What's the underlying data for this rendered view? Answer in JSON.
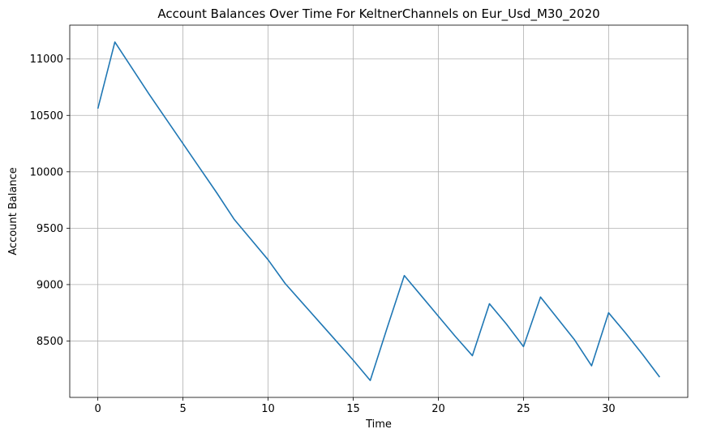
{
  "chart_data": {
    "type": "line",
    "title": "Account Balances Over Time For KeltnerChannels on Eur_Usd_M30_2020",
    "xlabel": "Time",
    "ylabel": "Account Balance",
    "xlim": [
      -1.65,
      34.65
    ],
    "ylim": [
      8000,
      11300
    ],
    "xticks": [
      0,
      5,
      10,
      15,
      20,
      25,
      30
    ],
    "yticks": [
      8500,
      9000,
      9500,
      10000,
      10500,
      11000
    ],
    "grid": true,
    "series": [
      {
        "color": "#1f77b4",
        "x": [
          0,
          1,
          2,
          3,
          4,
          5,
          6,
          7,
          8,
          9,
          10,
          11,
          12,
          13,
          14,
          15,
          16,
          17,
          18,
          19,
          20,
          21,
          22,
          23,
          24,
          25,
          26,
          27,
          28,
          29,
          30,
          31,
          32,
          33
        ],
        "y": [
          10560,
          11150,
          10920,
          10690,
          10470,
          10250,
          10030,
          9810,
          9580,
          9400,
          9220,
          9010,
          8840,
          8670,
          8500,
          8330,
          8150,
          8620,
          9080,
          8900,
          8720,
          8540,
          8370,
          8830,
          8650,
          8450,
          8890,
          8700,
          8510,
          8280,
          8750,
          8570,
          8380,
          8180
        ]
      }
    ]
  }
}
